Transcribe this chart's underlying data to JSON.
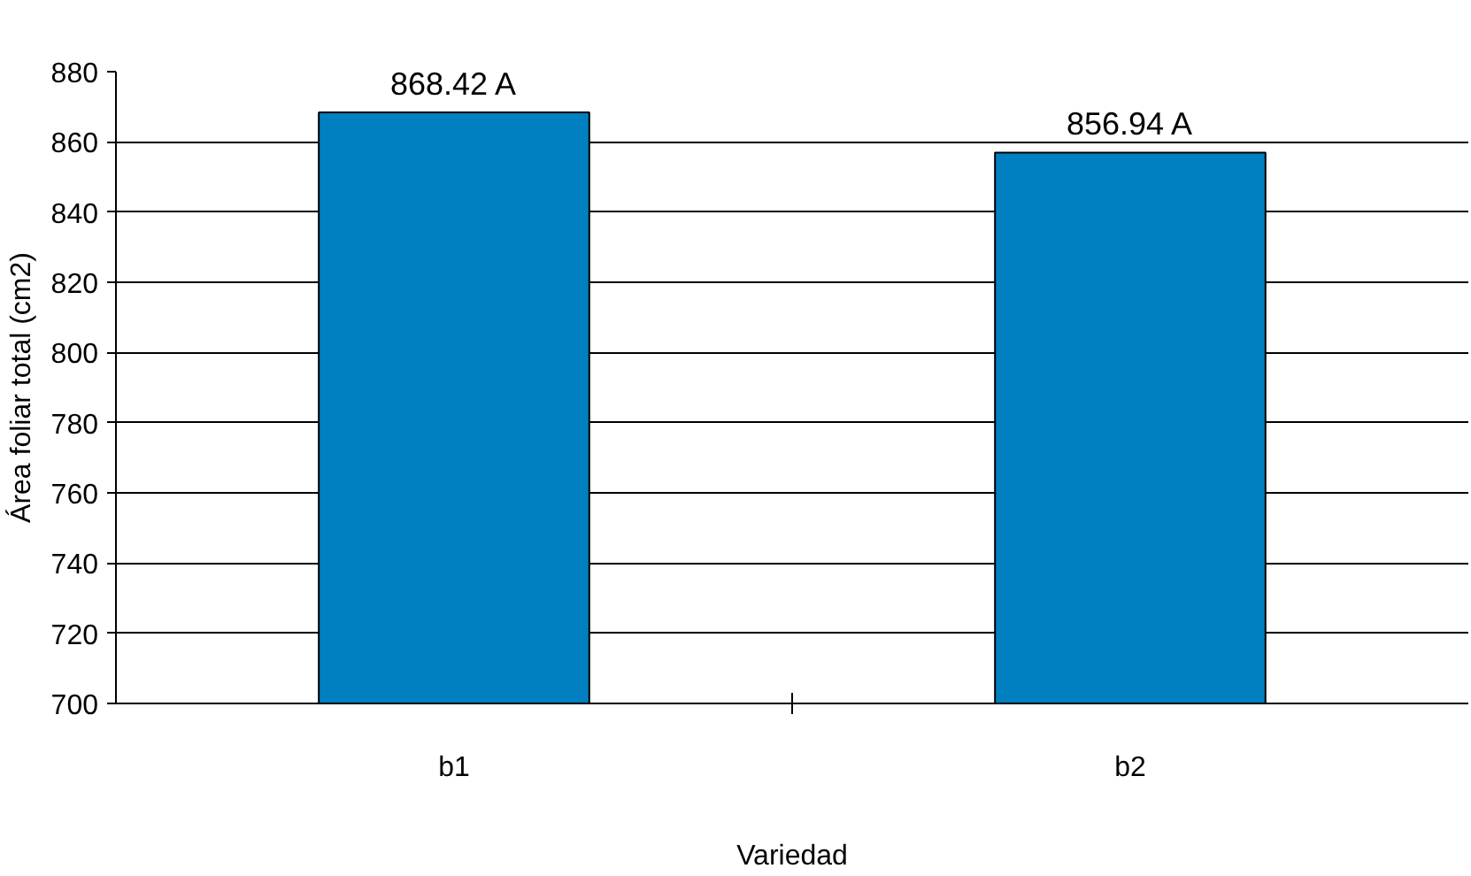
{
  "chart_data": {
    "type": "bar",
    "xlabel": "Variedad",
    "ylabel": "Área foliar total (cm2)",
    "categories": [
      "b1",
      "b2"
    ],
    "values": [
      868.42,
      856.94
    ],
    "value_labels": [
      "868.42 A",
      "856.94 A"
    ],
    "color": "#0080c0",
    "ylim": [
      700,
      880
    ],
    "yticks": [
      700,
      720,
      740,
      760,
      780,
      800,
      820,
      840,
      860,
      880
    ],
    "grid": "y"
  }
}
